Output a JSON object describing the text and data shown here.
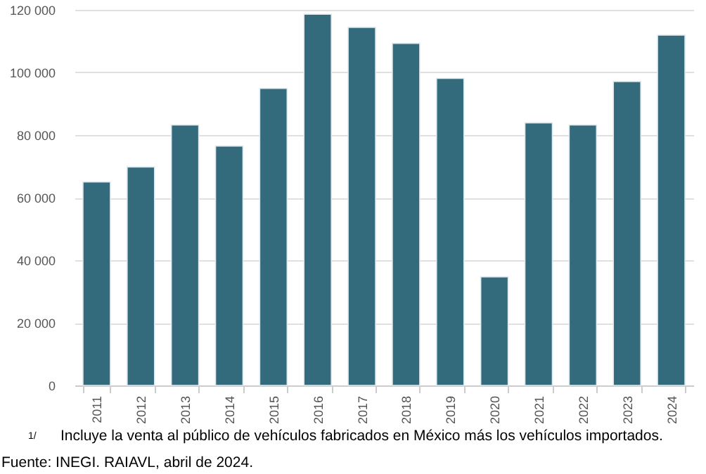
{
  "chart_data": {
    "type": "bar",
    "categories": [
      "2011",
      "2012",
      "2013",
      "2014",
      "2015",
      "2016",
      "2017",
      "2018",
      "2019",
      "2020",
      "2021",
      "2022",
      "2023",
      "2024"
    ],
    "values": [
      65000,
      69800,
      83200,
      76500,
      94900,
      118600,
      114400,
      109300,
      98100,
      34700,
      83900,
      83200,
      97100,
      111900
    ],
    "color": "#336b7d",
    "ylim": [
      0,
      120000
    ],
    "yticks": [
      0,
      {
        "value": 20000,
        "label": "20 000"
      },
      {
        "value": 40000,
        "label": "40 000"
      },
      {
        "value": 60000,
        "label": "60 000"
      },
      {
        "value": 80000,
        "label": "80 000"
      },
      {
        "value": 100000,
        "label": "100 000"
      },
      {
        "value": 120000,
        "label": "120 000"
      }
    ],
    "grid": "y",
    "annotations": [
      "1/",
      "Incluye la venta al público de vehículos fabricados en México más los vehículos importados.",
      "Fuente: INEGI. RAIAVL, abril de 2024."
    ]
  }
}
